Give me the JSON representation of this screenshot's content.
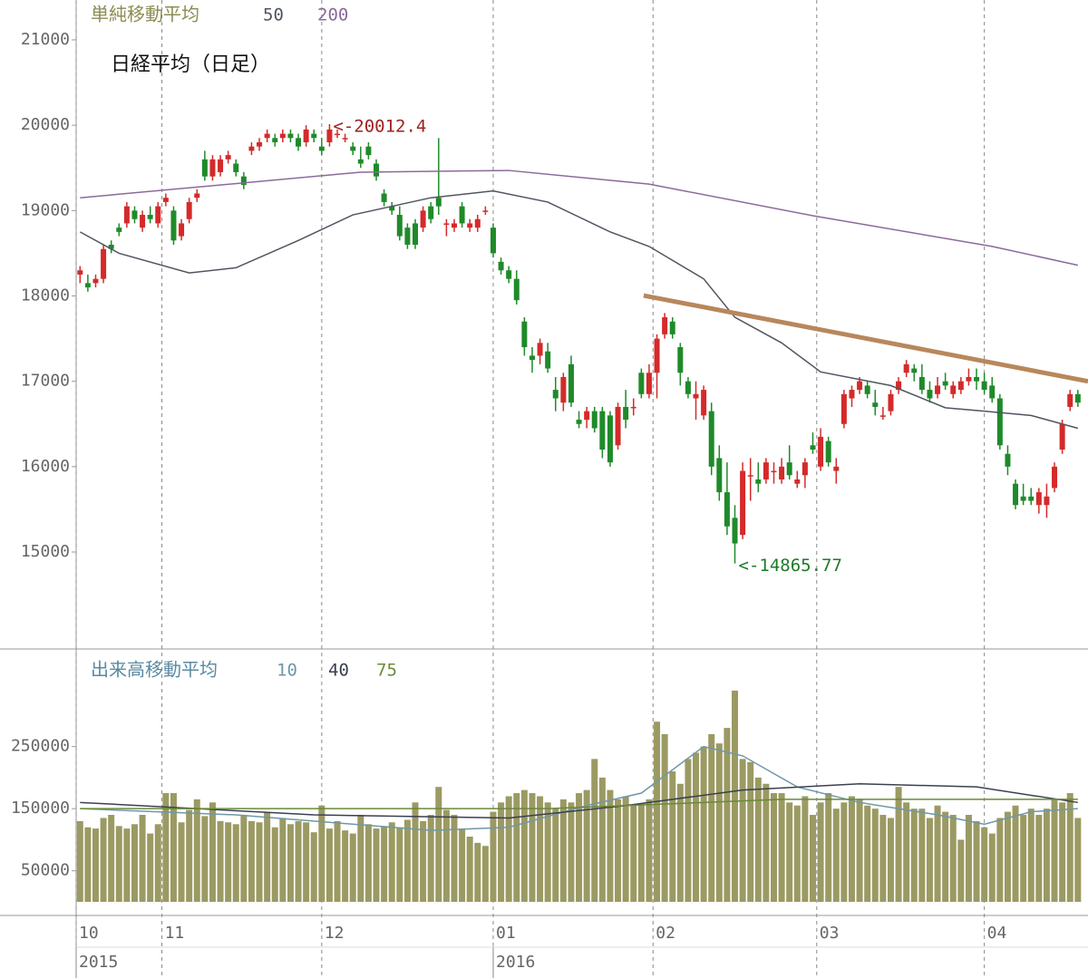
{
  "chart_data": [
    {
      "type": "candlestick",
      "title": "日経平均（日足）",
      "legend_title": "単純移動平均",
      "up_color": "#d42a2a",
      "down_color": "#1f8a2a",
      "xlim": [
        -0.5,
        129.3
      ],
      "ylim": [
        13864,
        21467
      ],
      "yticks": [
        15000,
        16000,
        17000,
        18000,
        19000,
        20000,
        21000
      ],
      "xticks": [
        {
          "value": -0.5,
          "label": "10"
        },
        {
          "value": 10.5,
          "label": "11"
        },
        {
          "value": 31,
          "label": "12"
        },
        {
          "value": 53,
          "label": "01"
        },
        {
          "value": 73.5,
          "label": "02"
        },
        {
          "value": 94.5,
          "label": "03"
        },
        {
          "value": 116,
          "label": "04"
        }
      ],
      "year_ticks": [
        {
          "value": -0.5,
          "label": "2015"
        },
        {
          "value": 53,
          "label": "2016"
        }
      ],
      "grid": true,
      "candles": [
        [
          18250,
          18350,
          18150,
          18300
        ],
        [
          18150,
          18250,
          18050,
          18100
        ],
        [
          18150,
          18250,
          18100,
          18200
        ],
        [
          18200,
          18600,
          18150,
          18550
        ],
        [
          18600,
          18650,
          18500,
          18550
        ],
        [
          18800,
          18850,
          18700,
          18750
        ],
        [
          18850,
          19100,
          18800,
          19050
        ],
        [
          19000,
          19050,
          18850,
          18900
        ],
        [
          18800,
          19000,
          18750,
          18950
        ],
        [
          18950,
          19050,
          18850,
          18900
        ],
        [
          18850,
          19100,
          18800,
          19050
        ],
        [
          19100,
          19200,
          19050,
          19150
        ],
        [
          19000,
          19050,
          18600,
          18650
        ],
        [
          18700,
          18900,
          18650,
          18850
        ],
        [
          18900,
          19150,
          18850,
          19100
        ],
        [
          19150,
          19250,
          19100,
          19200
        ],
        [
          19600,
          19700,
          19350,
          19400
        ],
        [
          19400,
          19650,
          19350,
          19600
        ],
        [
          19450,
          19650,
          19400,
          19600
        ],
        [
          19600,
          19700,
          19550,
          19650
        ],
        [
          19550,
          19600,
          19400,
          19450
        ],
        [
          19400,
          19450,
          19250,
          19300
        ],
        [
          19700,
          19800,
          19650,
          19750
        ],
        [
          19750,
          19850,
          19700,
          19800
        ],
        [
          19850,
          19950,
          19800,
          19900
        ],
        [
          19850,
          19900,
          19750,
          19800
        ],
        [
          19850,
          19950,
          19800,
          19900
        ],
        [
          19900,
          19950,
          19800,
          19850
        ],
        [
          19850,
          19900,
          19700,
          19750
        ],
        [
          19800,
          20000,
          19750,
          19950
        ],
        [
          19900,
          19950,
          19800,
          19850
        ],
        [
          19750,
          19850,
          19650,
          19700
        ],
        [
          19800,
          20012.4,
          19750,
          19950
        ],
        [
          19900,
          19950,
          19850,
          19900
        ],
        [
          19850,
          19900,
          19800,
          19850
        ],
        [
          19750,
          19800,
          19650,
          19700
        ],
        [
          19600,
          19750,
          19500,
          19550
        ],
        [
          19750,
          19800,
          19600,
          19650
        ],
        [
          19550,
          19600,
          19350,
          19400
        ],
        [
          19200,
          19250,
          19050,
          19100
        ],
        [
          19050,
          19100,
          18950,
          19000
        ],
        [
          18950,
          19050,
          18650,
          18700
        ],
        [
          18800,
          18850,
          18550,
          18600
        ],
        [
          18850,
          18900,
          18550,
          18600
        ],
        [
          18800,
          19050,
          18750,
          19000
        ],
        [
          19050,
          19100,
          18850,
          18900
        ],
        [
          19150,
          19850,
          18950,
          19050
        ],
        [
          18850,
          18900,
          18700,
          18850
        ],
        [
          18800,
          18900,
          18750,
          18850
        ],
        [
          19050,
          19100,
          18800,
          18850
        ],
        [
          18800,
          18900,
          18750,
          18850
        ],
        [
          18800,
          18950,
          18750,
          18900
        ],
        [
          19000,
          19050,
          18950,
          19000
        ],
        [
          18800,
          18850,
          18450,
          18500
        ],
        [
          18400,
          18450,
          18250,
          18300
        ],
        [
          18300,
          18350,
          18150,
          18200
        ],
        [
          18200,
          18300,
          17900,
          17950
        ],
        [
          17700,
          17750,
          17300,
          17400
        ],
        [
          17300,
          17400,
          17100,
          17250
        ],
        [
          17300,
          17500,
          17200,
          17450
        ],
        [
          17350,
          17450,
          17100,
          17150
        ],
        [
          16900,
          17050,
          16650,
          16800
        ],
        [
          16750,
          17100,
          16650,
          17050
        ],
        [
          17200,
          17300,
          16700,
          16750
        ],
        [
          16550,
          16650,
          16450,
          16500
        ],
        [
          16550,
          16700,
          16450,
          16650
        ],
        [
          16650,
          16700,
          16400,
          16450
        ],
        [
          16650,
          16700,
          16100,
          16200
        ],
        [
          16600,
          16650,
          16000,
          16050
        ],
        [
          16250,
          16750,
          16200,
          16700
        ],
        [
          16700,
          16900,
          16450,
          16550
        ],
        [
          16700,
          16800,
          16600,
          16700
        ],
        [
          17100,
          17150,
          16800,
          16850
        ],
        [
          16850,
          17200,
          16800,
          17100
        ],
        [
          17100,
          17550,
          16800,
          17500
        ],
        [
          17550,
          17800,
          17500,
          17750
        ],
        [
          17700,
          17750,
          17500,
          17550
        ],
        [
          17400,
          17450,
          16950,
          17100
        ],
        [
          17000,
          17050,
          16800,
          16850
        ],
        [
          16800,
          17000,
          16550,
          16850
        ],
        [
          16600,
          16950,
          16550,
          16900
        ],
        [
          16650,
          16750,
          15900,
          16000
        ],
        [
          16100,
          16250,
          15600,
          15700
        ],
        [
          15700,
          16050,
          15200,
          15300
        ],
        [
          15400,
          15550,
          14865.77,
          15100
        ],
        [
          15200,
          16050,
          15150,
          15950
        ],
        [
          15900,
          16100,
          15600,
          15900
        ],
        [
          15850,
          16050,
          15700,
          15800
        ],
        [
          15850,
          16100,
          15800,
          16050
        ],
        [
          15950,
          16050,
          15800,
          15950
        ],
        [
          15850,
          16100,
          15800,
          16000
        ],
        [
          16050,
          16250,
          15850,
          15900
        ],
        [
          15800,
          15950,
          15750,
          15850
        ],
        [
          15900,
          16100,
          15750,
          16050
        ],
        [
          16250,
          16400,
          16150,
          16200
        ],
        [
          16000,
          16450,
          15950,
          16350
        ],
        [
          16300,
          16350,
          16000,
          16050
        ],
        [
          15950,
          16100,
          15800,
          16000
        ],
        [
          16500,
          16900,
          16450,
          16850
        ],
        [
          16800,
          16950,
          16700,
          16900
        ],
        [
          16900,
          17050,
          16850,
          17000
        ],
        [
          16950,
          17000,
          16800,
          16850
        ],
        [
          16750,
          16900,
          16600,
          16700
        ],
        [
          16600,
          16700,
          16550,
          16600
        ],
        [
          16650,
          16900,
          16600,
          16850
        ],
        [
          16900,
          17050,
          16850,
          17000
        ],
        [
          17100,
          17250,
          17050,
          17200
        ],
        [
          17150,
          17200,
          17000,
          17100
        ],
        [
          17050,
          17200,
          16850,
          16900
        ],
        [
          16900,
          17000,
          16750,
          16800
        ],
        [
          16850,
          17050,
          16800,
          16950
        ],
        [
          17000,
          17100,
          16900,
          16950
        ],
        [
          16850,
          17000,
          16800,
          16950
        ],
        [
          16900,
          17050,
          16850,
          17000
        ],
        [
          17000,
          17150,
          16950,
          17050
        ],
        [
          17050,
          17150,
          16900,
          17000
        ],
        [
          17000,
          17100,
          16850,
          16900
        ],
        [
          16950,
          17050,
          16750,
          16800
        ],
        [
          16800,
          16850,
          16200,
          16250
        ],
        [
          16150,
          16250,
          15900,
          16000
        ],
        [
          15800,
          15850,
          15500,
          15550
        ],
        [
          15650,
          15800,
          15550,
          15600
        ],
        [
          15650,
          15750,
          15550,
          15600
        ],
        [
          15550,
          15750,
          15450,
          15700
        ],
        [
          15550,
          15800,
          15400,
          15650
        ],
        [
          15750,
          16050,
          15700,
          16000
        ],
        [
          16200,
          16550,
          16150,
          16500
        ],
        [
          16700,
          16900,
          16650,
          16850
        ],
        [
          16850,
          16900,
          16700,
          16750
        ]
      ],
      "series": [
        {
          "name": "50",
          "color": "#4f5560",
          "x": [
            0,
            5,
            14,
            20,
            28,
            35,
            45,
            53,
            60,
            68,
            73,
            80,
            84,
            90,
            95,
            104,
            111,
            116,
            122,
            128
          ],
          "values": [
            18750,
            18500,
            18270,
            18330,
            18650,
            18950,
            19150,
            19230,
            19100,
            18750,
            18580,
            18200,
            17750,
            17450,
            17110,
            16950,
            16690,
            16650,
            16600,
            16450
          ]
        },
        {
          "name": "200",
          "color": "#8a6a9a",
          "x": [
            0,
            36,
            55,
            73,
            94,
            117,
            128
          ],
          "values": [
            19150,
            19450,
            19470,
            19310,
            18940,
            18580,
            18360
          ]
        }
      ],
      "trendline": {
        "color": "#b8875c",
        "x": [
          72.3,
          129.3
        ],
        "values": [
          18005,
          17000
        ]
      },
      "annotations": [
        {
          "text": "<-20012.4",
          "x": 32,
          "value": 20012.4,
          "color": "#a02020"
        },
        {
          "text": "<-14865.77",
          "x": 84,
          "value": 14865.77,
          "color": "#1f7a2a"
        }
      ]
    },
    {
      "type": "bar",
      "legend_title": "出来高移動平均",
      "color": "#9b9a63",
      "xlim": [
        -0.5,
        129.3
      ],
      "ylim": [
        0,
        407000
      ],
      "yticks": [
        50000,
        150000,
        250000
      ],
      "values": [
        130000,
        120000,
        118000,
        135000,
        140000,
        122000,
        118000,
        125000,
        140000,
        110000,
        125000,
        175000,
        175000,
        128000,
        148000,
        165000,
        138000,
        160000,
        130000,
        128000,
        125000,
        140000,
        130000,
        128000,
        145000,
        120000,
        135000,
        125000,
        130000,
        128000,
        112000,
        155000,
        118000,
        130000,
        115000,
        110000,
        140000,
        125000,
        118000,
        122000,
        128000,
        120000,
        132000,
        160000,
        130000,
        140000,
        185000,
        148000,
        140000,
        118000,
        105000,
        95000,
        90000,
        145000,
        160000,
        170000,
        175000,
        180000,
        175000,
        170000,
        160000,
        150000,
        165000,
        160000,
        175000,
        180000,
        230000,
        200000,
        180000,
        165000,
        170000,
        155000,
        158000,
        165000,
        290000,
        270000,
        210000,
        190000,
        230000,
        240000,
        250000,
        270000,
        255000,
        280000,
        340000,
        230000,
        225000,
        200000,
        190000,
        175000,
        175000,
        160000,
        155000,
        170000,
        140000,
        160000,
        175000,
        150000,
        160000,
        170000,
        165000,
        155000,
        150000,
        140000,
        135000,
        185000,
        160000,
        150000,
        150000,
        135000,
        155000,
        145000,
        140000,
        100000,
        140000,
        130000,
        120000,
        110000,
        135000,
        145000,
        155000,
        140000,
        150000,
        140000,
        150000,
        165000,
        160000,
        175000,
        135000
      ],
      "series": [
        {
          "name": "10",
          "color": "#6f97a8",
          "x": [
            0,
            20,
            45,
            55,
            65,
            72,
            80,
            85,
            92,
            100,
            110,
            116,
            122,
            128
          ],
          "values": [
            150000,
            140000,
            115000,
            120000,
            155000,
            175000,
            250000,
            235000,
            185000,
            160000,
            140000,
            125000,
            145000,
            150000
          ]
        },
        {
          "name": "40",
          "color": "#3a4050",
          "x": [
            0,
            30,
            55,
            70,
            85,
            100,
            115,
            128
          ],
          "values": [
            160000,
            140000,
            135000,
            155000,
            180000,
            190000,
            185000,
            160000
          ]
        },
        {
          "name": "75",
          "color": "#6a8a3a",
          "x": [
            0,
            60,
            90,
            128
          ],
          "values": [
            150000,
            150000,
            165000,
            165000
          ]
        }
      ]
    }
  ]
}
